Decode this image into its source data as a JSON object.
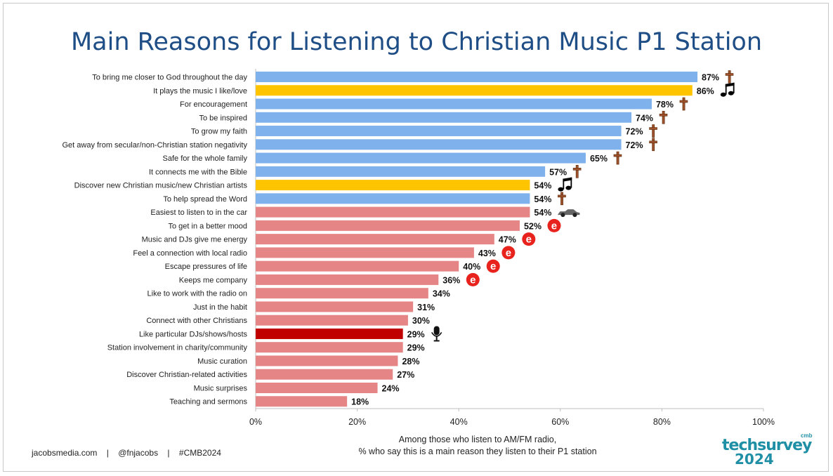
{
  "title": "Main Reasons for Listening to Christian Music P1 Station",
  "colors": {
    "blue": "#7fb2ec",
    "gold": "#ffc400",
    "pink": "#e68585",
    "red": "#c00000",
    "title": "#1f4e86"
  },
  "note_line1": "Among those who listen to AM/FM radio,",
  "note_line2": "% who say this is a main reason they listen to their P1 station",
  "footer": {
    "site": "jacobsmedia.com",
    "sep1": "|",
    "handle": "@fnjacobs",
    "sep2": "|",
    "hashtag": "#CMB2024"
  },
  "logo": {
    "brand": "techsurvey",
    "superscript": "cmb",
    "year": "2024"
  },
  "chart_data": {
    "type": "bar",
    "orientation": "horizontal",
    "categories": [
      "To bring me closer to God throughout the day",
      "It plays the music I like/love",
      "For encouragement",
      "To be inspired",
      "To grow my faith",
      "Get away from secular/non-Christian station negativity",
      "Safe for the whole family",
      "It connects me with the Bible",
      "Discover new Christian music/new Christian artists",
      "To help spread the Word",
      "Easiest to listen to in the car",
      "To get in a better mood",
      "Music and DJs give me energy",
      "Feel a connection with local radio",
      "Escape pressures of life",
      "Keeps me company",
      "Like to work with the radio on",
      "Just in the habit",
      "Connect with other Christians",
      "Like particular DJs/shows/hosts",
      "Station involvement in charity/community",
      "Music curation",
      "Discover Christian-related activities",
      "Music surprises",
      "Teaching and sermons"
    ],
    "values": [
      87,
      86,
      78,
      74,
      72,
      72,
      65,
      57,
      54,
      54,
      54,
      52,
      47,
      43,
      40,
      36,
      34,
      31,
      30,
      29,
      29,
      28,
      27,
      24,
      18
    ],
    "value_labels": [
      "87%",
      "86%",
      "78%",
      "74%",
      "72%",
      "72%",
      "65%",
      "57%",
      "54%",
      "54%",
      "54%",
      "52%",
      "47%",
      "43%",
      "40%",
      "36%",
      "34%",
      "31%",
      "30%",
      "29%",
      "29%",
      "28%",
      "27%",
      "24%",
      "18%"
    ],
    "bar_colors": [
      "blue",
      "gold",
      "blue",
      "blue",
      "blue",
      "blue",
      "blue",
      "blue",
      "gold",
      "blue",
      "pink",
      "pink",
      "pink",
      "pink",
      "pink",
      "pink",
      "pink",
      "pink",
      "pink",
      "red",
      "pink",
      "pink",
      "pink",
      "pink",
      "pink"
    ],
    "icons": [
      "cross-icon",
      "music-note-icon",
      "cross-icon",
      "cross-icon",
      "cross-icon",
      "cross-icon",
      "cross-icon",
      "cross-icon",
      "music-note-icon",
      "cross-icon",
      "car-icon",
      "e-icon",
      "e-icon",
      "e-icon",
      "e-icon",
      "e-icon",
      "",
      "",
      "",
      "microphone-icon",
      "",
      "",
      "",
      "",
      ""
    ],
    "xlim": [
      0,
      100
    ],
    "x_ticks": [
      "0%",
      "20%",
      "40%",
      "60%",
      "80%",
      "100%"
    ],
    "grid": false
  }
}
